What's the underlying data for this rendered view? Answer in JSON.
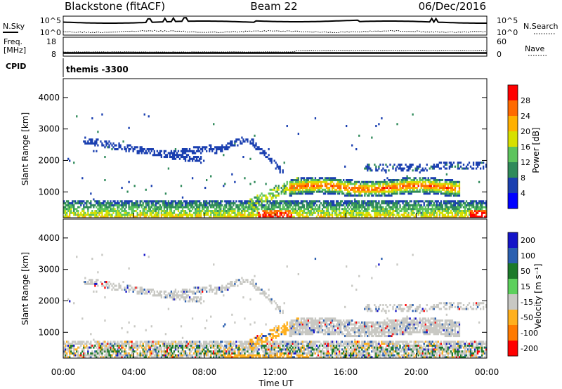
{
  "header": {
    "station": "Blackstone (fitACF)",
    "beam": "Beam 22",
    "date": "06/Dec/2016"
  },
  "noise_panel": {
    "left_label": "N.Sky",
    "left_ticks": [
      "10^5",
      "10^0"
    ],
    "right_ticks": [
      "10^5",
      "10^0"
    ],
    "right_label": "N.Search"
  },
  "freq_panel": {
    "left_label_line1": "Freq.",
    "left_label_line2": "[MHz]",
    "left_ticks": [
      "18",
      "8"
    ],
    "right_ticks": [
      "60",
      "0"
    ],
    "right_label": "Nave"
  },
  "cpid_panel": {
    "label": "CPID",
    "value": "themis -3300"
  },
  "colors": {
    "power_scale": [
      "#0000ff",
      "#1a3fb0",
      "#2f8a5a",
      "#5dc45d",
      "#d7e000",
      "#ffb000",
      "#ff6a00",
      "#ff0000"
    ],
    "velocity_scale": [
      "#1414c8",
      "#2a5fb0",
      "#1c7a2a",
      "#5cd05c",
      "#c8c8c3",
      "#ffb01e",
      "#ff7a00",
      "#ff0000"
    ]
  },
  "chart_data": [
    {
      "type": "heatmap",
      "name": "power",
      "ylabel": "Slant Range [km]",
      "ylim": [
        180,
        4600
      ],
      "y_ticks": [
        "1000",
        "2000",
        "3000",
        "4000"
      ],
      "y_tick_values": [
        1000,
        2000,
        3000,
        4000
      ],
      "x_range_hours": [
        0,
        24
      ],
      "colorbar": {
        "label": "Power [dB]",
        "range": [
          0,
          32
        ],
        "ticks": [
          "4",
          "8",
          "12",
          "16",
          "20",
          "24",
          "28"
        ],
        "tick_values": [
          4,
          8,
          12,
          16,
          20,
          24,
          28
        ]
      },
      "features": [
        {
          "label": "near-range band",
          "t": [
            0,
            24
          ],
          "range_km": [
            180,
            700
          ],
          "power_db": 12
        },
        {
          "label": "arc 1",
          "t": [
            1,
            13
          ],
          "range_km": [
            2700,
            1500
          ],
          "power_db": 4
        },
        {
          "label": "strong band",
          "t": [
            13,
            22.5
          ],
          "range_km": [
            1000,
            1300
          ],
          "power_db": 28
        }
      ]
    },
    {
      "type": "heatmap",
      "name": "velocity",
      "ylabel": "Slant Range [km]",
      "ylim": [
        180,
        4600
      ],
      "y_ticks": [
        "1000",
        "2000",
        "3000",
        "4000"
      ],
      "y_tick_values": [
        1000,
        2000,
        3000,
        4000
      ],
      "x_range_hours": [
        0,
        24
      ],
      "x_ticks": [
        "00:00",
        "04:00",
        "08:00",
        "12:00",
        "16:00",
        "20:00",
        "00:00"
      ],
      "x_tick_values": [
        0,
        4,
        8,
        12,
        16,
        20,
        24
      ],
      "xlabel": "Time UT",
      "colorbar": {
        "label": "Velocity [m s⁻¹]",
        "range": [
          -250,
          250
        ],
        "ticks": [
          "200",
          "100",
          "50",
          "15",
          "-15",
          "-50",
          "-100",
          "-200"
        ],
        "tick_values": [
          200,
          100,
          50,
          15,
          -15,
          -50,
          -100,
          -200
        ]
      }
    }
  ]
}
